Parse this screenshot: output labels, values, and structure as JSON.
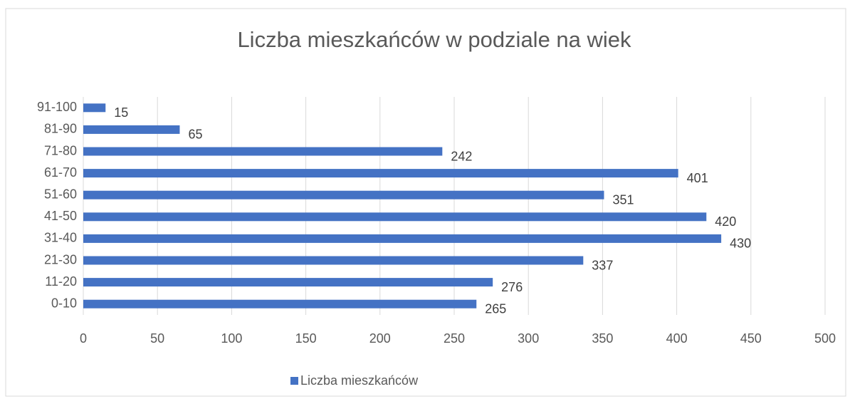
{
  "chart_data": {
    "type": "hbar",
    "title": "Liczba mieszkańców w podziale na wiek",
    "categories": [
      "0-10",
      "11-20",
      "21-30",
      "31-40",
      "41-50",
      "51-60",
      "61-70",
      "71-80",
      "81-90",
      "91-100"
    ],
    "series": [
      {
        "name": "Liczba mieszkańców",
        "color": "#4472c4",
        "values": [
          265,
          276,
          337,
          430,
          420,
          351,
          401,
          242,
          65,
          15
        ]
      }
    ],
    "xlim": [
      0,
      500
    ],
    "xticks": [
      0,
      50,
      100,
      150,
      200,
      250,
      300,
      350,
      400,
      450,
      500
    ],
    "grid": true,
    "legend": "bottom"
  }
}
